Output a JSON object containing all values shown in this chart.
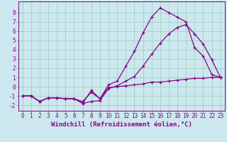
{
  "xlabel": "Windchill (Refroidissement éolien,°C)",
  "bg_color": "#cce8ee",
  "line_color": "#880088",
  "grid_color": "#99ccbb",
  "xlim": [
    -0.5,
    23.5
  ],
  "ylim": [
    -2.6,
    9.2
  ],
  "xticks": [
    0,
    1,
    2,
    3,
    4,
    5,
    6,
    7,
    8,
    9,
    10,
    11,
    12,
    13,
    14,
    15,
    16,
    17,
    18,
    19,
    20,
    21,
    22,
    23
  ],
  "yticks": [
    -2,
    -1,
    0,
    1,
    2,
    3,
    4,
    5,
    6,
    7,
    8
  ],
  "line1_x": [
    0,
    1,
    2,
    3,
    4,
    5,
    6,
    7,
    8,
    9,
    10,
    11,
    12,
    13,
    14,
    15,
    16,
    17,
    18,
    19,
    20,
    21,
    22,
    23
  ],
  "line1_y": [
    -1.0,
    -1.0,
    -1.6,
    -1.2,
    -1.2,
    -1.3,
    -1.3,
    -1.8,
    -0.4,
    -1.3,
    0.2,
    0.6,
    2.2,
    3.8,
    5.8,
    7.5,
    8.5,
    8.0,
    7.5,
    7.0,
    4.2,
    3.3,
    1.3,
    1.0
  ],
  "line2_x": [
    0,
    1,
    2,
    3,
    4,
    5,
    6,
    7,
    8,
    9,
    10,
    11,
    12,
    13,
    14,
    15,
    16,
    17,
    18,
    19,
    20,
    21,
    22,
    23
  ],
  "line2_y": [
    -1.0,
    -1.0,
    -1.6,
    -1.2,
    -1.2,
    -1.3,
    -1.3,
    -1.8,
    -1.6,
    -1.5,
    -0.2,
    0.1,
    0.6,
    1.1,
    2.2,
    3.5,
    4.7,
    5.7,
    6.4,
    6.7,
    5.7,
    4.6,
    2.9,
    1.0
  ],
  "line3_x": [
    0,
    1,
    2,
    3,
    4,
    5,
    6,
    7,
    8,
    9,
    10,
    11,
    12,
    13,
    14,
    15,
    16,
    17,
    18,
    19,
    20,
    21,
    22,
    23
  ],
  "line3_y": [
    -1.0,
    -1.0,
    -1.6,
    -1.2,
    -1.2,
    -1.3,
    -1.3,
    -1.6,
    -0.6,
    -1.3,
    -0.1,
    0.0,
    0.1,
    0.2,
    0.3,
    0.5,
    0.5,
    0.6,
    0.7,
    0.8,
    0.9,
    0.9,
    1.0,
    1.0
  ],
  "tick_fontsize": 5.5,
  "xlabel_fontsize": 6.5
}
